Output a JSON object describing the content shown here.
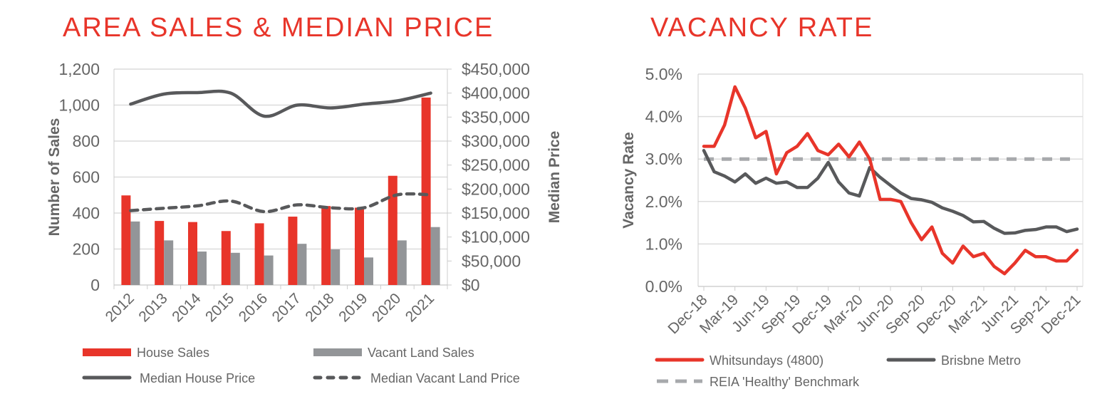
{
  "chart_data": [
    {
      "type": "bar",
      "title": "AREA SALES & MEDIAN PRICE",
      "ylabel": "Number of Sales",
      "y2label": "Median Price",
      "categories": [
        "2012",
        "2013",
        "2014",
        "2015",
        "2016",
        "2017",
        "2018",
        "2019",
        "2020",
        "2021"
      ],
      "ylim": [
        0,
        1200
      ],
      "yticks": [
        "0",
        "200",
        "400",
        "600",
        "800",
        "1,000",
        "1,200"
      ],
      "y2lim": [
        0,
        450000
      ],
      "y2ticks": [
        "$0",
        "$50,000",
        "$100,000",
        "$150,000",
        "$200,000",
        "$250,000",
        "$300,000",
        "$350,000",
        "$400,000",
        "$450,000"
      ],
      "grid": true,
      "legend_placement": "bottom",
      "series": [
        {
          "name": "House Sales",
          "kind": "bar",
          "axis": "left",
          "color": "#e8352a",
          "values": [
            498,
            356,
            350,
            300,
            343,
            380,
            439,
            430,
            607,
            1042
          ]
        },
        {
          "name": "Vacant Land Sales",
          "kind": "bar",
          "axis": "left",
          "color": "#939598",
          "values": [
            353,
            248,
            186,
            179,
            164,
            229,
            198,
            153,
            248,
            322
          ]
        },
        {
          "name": "Median House Price",
          "kind": "line",
          "style": "solid",
          "axis": "right",
          "color": "#58595b",
          "values": [
            377000,
            398000,
            401000,
            400000,
            352000,
            375000,
            369000,
            377000,
            384000,
            400000
          ]
        },
        {
          "name": "Median Vacant Land Price",
          "kind": "line",
          "style": "dashed",
          "axis": "right",
          "color": "#58595b",
          "values": [
            155000,
            160000,
            165000,
            175000,
            153000,
            167000,
            161000,
            161000,
            188000,
            188000
          ]
        }
      ]
    },
    {
      "type": "line",
      "title": "VACANCY RATE",
      "ylabel": "Vacancy Rate",
      "ylim": [
        0,
        5.0
      ],
      "yticks": [
        "0.0%",
        "1.0%",
        "2.0%",
        "3.0%",
        "4.0%",
        "5.0%"
      ],
      "xticks": [
        "Dec-18",
        "Mar-19",
        "Jun-19",
        "Sep-19",
        "Dec-19",
        "Mar-20",
        "Jun-20",
        "Sep-20",
        "Dec-20",
        "Mar-21",
        "Jun-21",
        "Sep-21",
        "Dec-21"
      ],
      "x_start": "Dec-18",
      "x_end": "Dec-21",
      "x_frequency": "monthly",
      "grid": true,
      "legend_placement": "bottom",
      "series": [
        {
          "name": "Whitsundays (4800)",
          "color": "#e8352a",
          "style": "solid",
          "values": [
            3.3,
            3.3,
            3.8,
            4.7,
            4.2,
            3.5,
            3.65,
            2.65,
            3.15,
            3.3,
            3.6,
            3.2,
            3.1,
            3.35,
            3.05,
            3.4,
            3.0,
            2.05,
            2.05,
            2.0,
            1.5,
            1.1,
            1.4,
            0.78,
            0.55,
            0.95,
            0.7,
            0.78,
            0.47,
            0.3,
            0.55,
            0.85,
            0.7,
            0.7,
            0.6,
            0.6,
            0.85
          ]
        },
        {
          "name": "Brisbne Metro",
          "color": "#58595b",
          "style": "solid",
          "values": [
            3.2,
            2.7,
            2.6,
            2.46,
            2.65,
            2.43,
            2.55,
            2.43,
            2.46,
            2.33,
            2.33,
            2.55,
            2.92,
            2.46,
            2.2,
            2.13,
            2.8,
            2.57,
            2.38,
            2.2,
            2.07,
            2.04,
            1.98,
            1.85,
            1.77,
            1.67,
            1.52,
            1.53,
            1.37,
            1.25,
            1.26,
            1.32,
            1.34,
            1.4,
            1.4,
            1.29,
            1.35
          ]
        },
        {
          "name": "REIA 'Healthy' Benchmark",
          "color": "#a7a9ac",
          "style": "dashed",
          "values": [
            3.0,
            3.0,
            3.0,
            3.0,
            3.0,
            3.0,
            3.0,
            3.0,
            3.0,
            3.0,
            3.0,
            3.0,
            3.0,
            3.0,
            3.0,
            3.0,
            3.0,
            3.0,
            3.0,
            3.0,
            3.0,
            3.0,
            3.0,
            3.0,
            3.0,
            3.0,
            3.0,
            3.0,
            3.0,
            3.0,
            3.0,
            3.0,
            3.0,
            3.0,
            3.0,
            3.0,
            3.0
          ]
        }
      ]
    }
  ]
}
